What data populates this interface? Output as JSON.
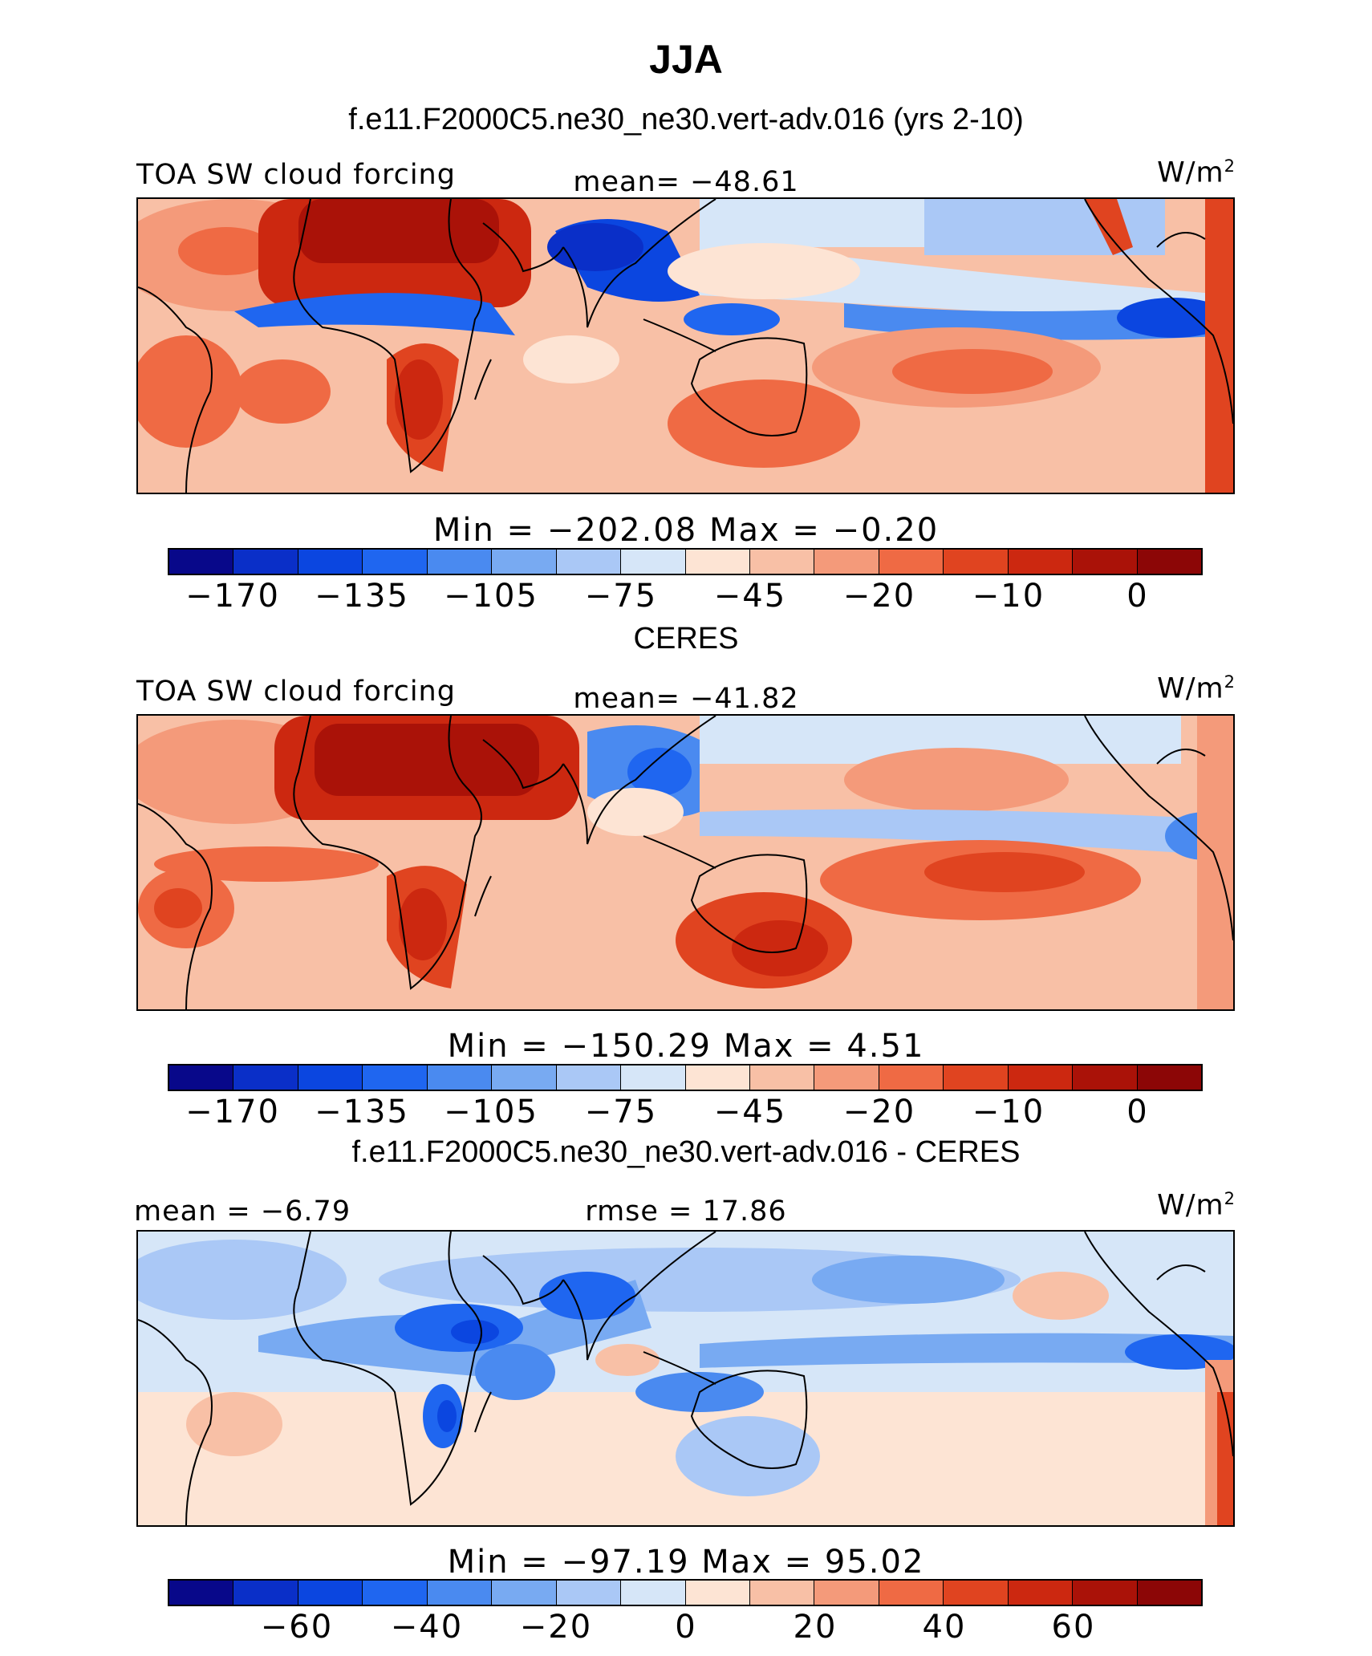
{
  "title": "JJA",
  "units": "W/m",
  "units_exp": "2",
  "colors": [
    "#08088a",
    "#0a2fc8",
    "#0b46e0",
    "#1f66f0",
    "#4a8af0",
    "#78aaf2",
    "#aac8f6",
    "#d6e6f8",
    "#fde4d4",
    "#f8c0a6",
    "#f49a7a",
    "#ef6a44",
    "#e04420",
    "#cc2810",
    "#aa1208",
    "#8c0606"
  ],
  "panels": [
    {
      "heading": "f.e11.F2000C5.ne30_ne30.vert-adv.016 (yrs 2-10)",
      "left": "TOA SW cloud forcing",
      "mid": "mean= −48.61",
      "minmax": "Min = −202.08  Max =   −0.20",
      "ticks": [
        "−170",
        "−135",
        "−105",
        "−75",
        "−45",
        "−20",
        "−10",
        "0"
      ]
    },
    {
      "heading": "CERES",
      "left": "TOA SW cloud forcing",
      "mid": "mean= −41.82",
      "minmax": "Min = −150.29  Max =    4.51",
      "ticks": [
        "−170",
        "−135",
        "−105",
        "−75",
        "−45",
        "−20",
        "−10",
        "0"
      ]
    },
    {
      "heading": "f.e11.F2000C5.ne30_ne30.vert-adv.016 - CERES",
      "left": "mean =  −6.79",
      "mid": "rmse =  17.86",
      "minmax": "Min = −97.19  Max =   95.02",
      "ticks": [
        "−60",
        "−40",
        "−20",
        "0",
        "20",
        "40",
        "60"
      ]
    }
  ]
}
